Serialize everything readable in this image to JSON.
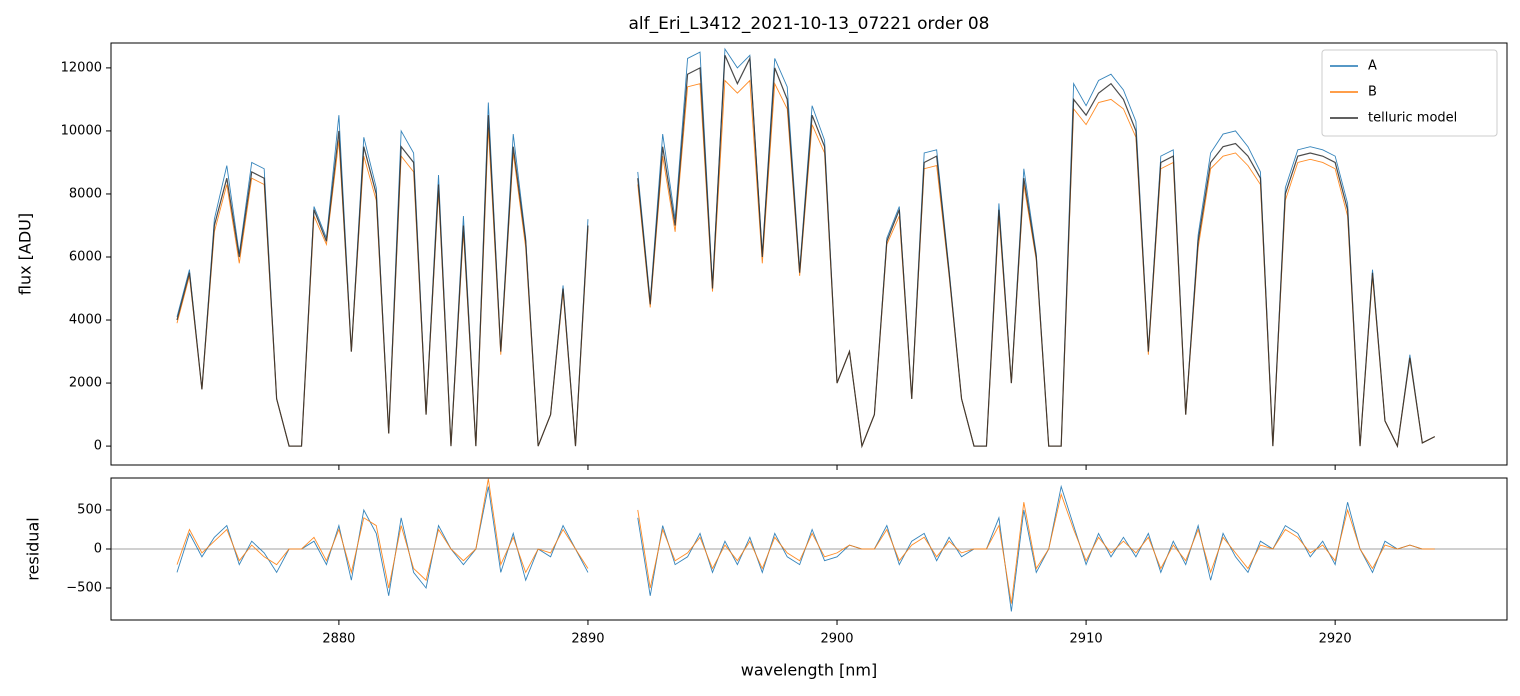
{
  "chart_data": [
    {
      "type": "line",
      "title": "alf_Eri_L3412_2021-10-13_07221  order 08",
      "ylabel": "flux [ADU]",
      "x": [
        2873.5,
        2874,
        2874.5,
        2875,
        2875.5,
        2876,
        2876.5,
        2877,
        2877.5,
        2878,
        2878.5,
        2879,
        2879.5,
        2880,
        2880.5,
        2881,
        2881.5,
        2882,
        2882.5,
        2883,
        2883.5,
        2884,
        2884.5,
        2885,
        2885.5,
        2886,
        2886.5,
        2887,
        2887.5,
        2888,
        2888.5,
        2889,
        2889.5,
        2890,
        2890.5,
        2891,
        2891.5,
        2892,
        2892.5,
        2893,
        2893.5,
        2894,
        2894.5,
        2895,
        2895.5,
        2896,
        2896.5,
        2897,
        2897.5,
        2898,
        2898.5,
        2899,
        2899.5,
        2900,
        2900.5,
        2901,
        2901.5,
        2902,
        2902.5,
        2903,
        2903.5,
        2904,
        2904.5,
        2905,
        2905.5,
        2906,
        2906.5,
        2907,
        2907.5,
        2908,
        2908.5,
        2909,
        2909.5,
        2910,
        2910.5,
        2911,
        2911.5,
        2912,
        2912.5,
        2913,
        2913.5,
        2914,
        2914.5,
        2915,
        2915.5,
        2916,
        2916.5,
        2917,
        2917.5,
        2918,
        2918.5,
        2919,
        2919.5,
        2920,
        2920.5,
        2921,
        2921.5,
        2922,
        2922.5,
        2923,
        2923.5,
        2924
      ],
      "series": [
        {
          "name": "A",
          "color": "#1f77b4",
          "values": [
            4100,
            5600,
            1800,
            7200,
            8900,
            6100,
            9000,
            8800,
            1500,
            0,
            0,
            7600,
            6600,
            10500,
            3000,
            9800,
            8200,
            400,
            10000,
            9300,
            1000,
            8600,
            0,
            7300,
            0,
            10900,
            3000,
            9900,
            6600,
            0,
            1000,
            5100,
            0,
            7200,
            null,
            null,
            null,
            8700,
            4600,
            9900,
            7200,
            12300,
            12500,
            5100,
            12600,
            12000,
            12400,
            6100,
            12300,
            11400,
            5600,
            10800,
            9700,
            2000,
            3000,
            0,
            1000,
            6600,
            7600,
            1500,
            9300,
            9400,
            5600,
            1500,
            0,
            0,
            7700,
            2000,
            8800,
            6100,
            0,
            0,
            11500,
            10800,
            11600,
            11800,
            11300,
            10300,
            3000,
            9200,
            9400,
            1000,
            6700,
            9300,
            9900,
            10000,
            9500,
            8700,
            0,
            8200,
            9400,
            9500,
            9400,
            9200,
            7700,
            0,
            5600,
            800,
            0,
            2900,
            100,
            300
          ]
        },
        {
          "name": "B",
          "color": "#ff7f0e",
          "values": [
            3900,
            5400,
            1800,
            6800,
            8300,
            5800,
            8500,
            8300,
            1500,
            0,
            0,
            7300,
            6400,
            9700,
            3000,
            9200,
            7800,
            400,
            9200,
            8700,
            1000,
            8100,
            0,
            6800,
            0,
            10100,
            2900,
            9300,
            6300,
            0,
            1000,
            4900,
            0,
            6900,
            null,
            null,
            null,
            8300,
            4400,
            9200,
            6800,
            11400,
            11500,
            4900,
            11600,
            11200,
            11600,
            5800,
            11500,
            10700,
            5400,
            10200,
            9300,
            2000,
            3000,
            0,
            1000,
            6400,
            7300,
            1500,
            8800,
            8900,
            5400,
            1500,
            0,
            0,
            7300,
            2000,
            8300,
            5900,
            0,
            0,
            10700,
            10200,
            10900,
            11000,
            10700,
            9800,
            2900,
            8800,
            9000,
            1000,
            6300,
            8800,
            9200,
            9300,
            8900,
            8300,
            0,
            7800,
            9000,
            9100,
            9000,
            8800,
            7300,
            0,
            5400,
            800,
            0,
            2800,
            100,
            300
          ]
        },
        {
          "name": "telluric model",
          "color": "#2b2b2b",
          "values": [
            4000,
            5500,
            1800,
            7000,
            8500,
            6000,
            8700,
            8500,
            1500,
            0,
            0,
            7500,
            6500,
            10000,
            3000,
            9500,
            8000,
            400,
            9500,
            9000,
            1000,
            8300,
            0,
            7000,
            0,
            10500,
            3000,
            9500,
            6500,
            0,
            1000,
            5000,
            0,
            7000,
            null,
            null,
            null,
            8500,
            4500,
            9500,
            7000,
            11800,
            12000,
            5000,
            12400,
            11500,
            12300,
            6000,
            12000,
            11000,
            5500,
            10500,
            9500,
            2000,
            3000,
            0,
            1000,
            6500,
            7500,
            1500,
            9000,
            9200,
            5500,
            1500,
            0,
            0,
            7500,
            2000,
            8500,
            6000,
            0,
            0,
            11000,
            10500,
            11200,
            11500,
            11000,
            10000,
            3000,
            9000,
            9200,
            1000,
            6500,
            9000,
            9500,
            9600,
            9200,
            8500,
            0,
            8000,
            9200,
            9300,
            9200,
            9000,
            7500,
            0,
            5500,
            800,
            0,
            2800,
            100,
            300
          ]
        }
      ],
      "xlim": [
        2870.85,
        2926.9
      ],
      "xticks": [
        2880,
        2890,
        2900,
        2910,
        2920
      ],
      "show_xtick_labels": false,
      "ylim": [
        -600,
        12790
      ],
      "yticks": [
        0,
        2000,
        4000,
        6000,
        8000,
        10000,
        12000
      ],
      "legend": "upper right"
    },
    {
      "type": "line",
      "xlabel": "wavelength [nm]",
      "ylabel": "residual",
      "x": [
        2873.5,
        2874,
        2874.5,
        2875,
        2875.5,
        2876,
        2876.5,
        2877,
        2877.5,
        2878,
        2878.5,
        2879,
        2879.5,
        2880,
        2880.5,
        2881,
        2881.5,
        2882,
        2882.5,
        2883,
        2883.5,
        2884,
        2884.5,
        2885,
        2885.5,
        2886,
        2886.5,
        2887,
        2887.5,
        2888,
        2888.5,
        2889,
        2889.5,
        2890,
        2890.5,
        2891,
        2891.5,
        2892,
        2892.5,
        2893,
        2893.5,
        2894,
        2894.5,
        2895,
        2895.5,
        2896,
        2896.5,
        2897,
        2897.5,
        2898,
        2898.5,
        2899,
        2899.5,
        2900,
        2900.5,
        2901,
        2901.5,
        2902,
        2902.5,
        2903,
        2903.5,
        2904,
        2904.5,
        2905,
        2905.5,
        2906,
        2906.5,
        2907,
        2907.5,
        2908,
        2908.5,
        2909,
        2909.5,
        2910,
        2910.5,
        2911,
        2911.5,
        2912,
        2912.5,
        2913,
        2913.5,
        2914,
        2914.5,
        2915,
        2915.5,
        2916,
        2916.5,
        2917,
        2917.5,
        2918,
        2918.5,
        2919,
        2919.5,
        2920,
        2920.5,
        2921,
        2921.5,
        2922,
        2922.5,
        2923,
        2923.5,
        2924
      ],
      "series": [
        {
          "color": "#1f77b4",
          "values": [
            -300,
            200,
            -100,
            150,
            300,
            -200,
            100,
            -50,
            -300,
            0,
            0,
            100,
            -200,
            300,
            -400,
            500,
            200,
            -600,
            400,
            -300,
            -500,
            300,
            0,
            -200,
            0,
            800,
            -300,
            200,
            -400,
            0,
            -100,
            300,
            0,
            -300,
            null,
            null,
            null,
            400,
            -600,
            300,
            -200,
            -100,
            200,
            -300,
            100,
            -200,
            150,
            -300,
            200,
            -100,
            -200,
            250,
            -150,
            -100,
            50,
            0,
            0,
            300,
            -200,
            100,
            200,
            -150,
            150,
            -100,
            0,
            0,
            400,
            -800,
            500,
            -300,
            0,
            800,
            300,
            -200,
            200,
            -100,
            150,
            -100,
            200,
            -300,
            100,
            -200,
            300,
            -400,
            200,
            -100,
            -300,
            100,
            0,
            300,
            200,
            -100,
            100,
            -200,
            600,
            0,
            -300,
            100,
            0,
            50,
            0,
            0
          ]
        },
        {
          "color": "#ff7f0e",
          "values": [
            -200,
            250,
            -50,
            100,
            250,
            -150,
            50,
            -100,
            -200,
            0,
            0,
            150,
            -150,
            250,
            -300,
            400,
            300,
            -500,
            300,
            -250,
            -400,
            250,
            0,
            -150,
            0,
            900,
            -200,
            150,
            -300,
            0,
            -50,
            250,
            0,
            -250,
            null,
            null,
            null,
            500,
            -500,
            250,
            -150,
            -50,
            150,
            -250,
            50,
            -150,
            100,
            -250,
            150,
            -50,
            -150,
            200,
            -100,
            -50,
            50,
            0,
            0,
            250,
            -150,
            50,
            150,
            -100,
            100,
            -50,
            0,
            0,
            300,
            -700,
            600,
            -250,
            0,
            700,
            250,
            -150,
            150,
            -50,
            100,
            -50,
            150,
            -250,
            50,
            -150,
            250,
            -300,
            150,
            -50,
            -250,
            50,
            0,
            250,
            150,
            -50,
            50,
            -150,
            500,
            0,
            -250,
            50,
            0,
            50,
            0,
            0
          ]
        }
      ],
      "hline": 0,
      "xlim": [
        2870.85,
        2926.9
      ],
      "xticks": [
        2880,
        2890,
        2900,
        2910,
        2920
      ],
      "show_xtick_labels": true,
      "ylim": [
        -910,
        910
      ],
      "yticks": [
        {
          "value": -500,
          "label": "−500"
        },
        0,
        500
      ]
    }
  ]
}
